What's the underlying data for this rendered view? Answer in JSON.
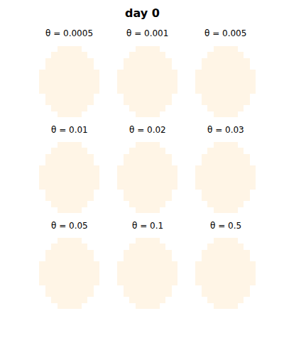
{
  "chart_data": {
    "type": "heatmap",
    "title": "day 0",
    "panels": [
      "θ = 0.0005",
      "θ = 0.001",
      "θ = 0.005",
      "θ = 0.01",
      "θ = 0.02",
      "θ = 0.03",
      "θ = 0.05",
      "θ = 0.1",
      "θ = 0.5"
    ],
    "cells": [
      [
        null,
        null,
        null,
        0,
        0,
        0,
        0,
        null,
        null,
        null
      ],
      [
        null,
        null,
        0,
        0,
        0,
        0,
        0,
        0,
        null,
        null
      ],
      [
        null,
        0,
        0,
        0,
        0,
        0,
        0,
        0,
        0,
        null
      ],
      [
        null,
        0,
        0,
        0,
        0,
        0,
        0,
        0,
        0,
        null
      ],
      [
        0,
        0,
        0,
        0,
        0,
        0,
        0,
        0,
        0,
        0
      ],
      [
        0,
        0,
        0,
        0,
        0,
        0,
        0,
        0,
        0,
        0
      ],
      [
        0,
        0,
        0,
        0,
        0,
        0,
        0,
        0,
        0,
        0
      ],
      [
        0,
        0,
        0,
        0,
        0,
        0,
        0,
        0,
        0,
        0
      ],
      [
        null,
        0,
        0,
        0,
        0,
        0,
        0,
        0,
        0,
        null
      ],
      [
        null,
        0,
        0,
        0,
        0,
        0,
        0,
        0,
        0,
        null
      ],
      [
        null,
        null,
        0,
        0,
        0,
        0,
        0,
        0,
        null,
        null
      ],
      [
        null,
        null,
        null,
        0,
        0,
        0,
        0,
        null,
        null,
        null
      ]
    ],
    "color": "#fff5e6",
    "tick_labels": false
  }
}
